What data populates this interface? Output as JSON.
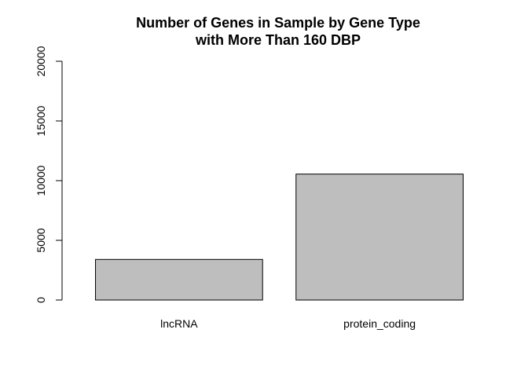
{
  "chart_data": {
    "type": "bar",
    "title_lines": [
      "Number of Genes in Sample by Gene Type",
      "with More Than 160 DBP"
    ],
    "categories": [
      "lncRNA",
      "protein_coding"
    ],
    "values": [
      3400,
      10550
    ],
    "xlabel": "",
    "ylabel": "",
    "ylim": [
      0,
      20000
    ],
    "yticks": [
      0,
      5000,
      10000,
      15000,
      20000
    ],
    "ytick_labels": [
      "0",
      "5000",
      "10000",
      "15000",
      "20000"
    ],
    "bar_color": "#bebebe",
    "grid": false,
    "legend": "none"
  }
}
